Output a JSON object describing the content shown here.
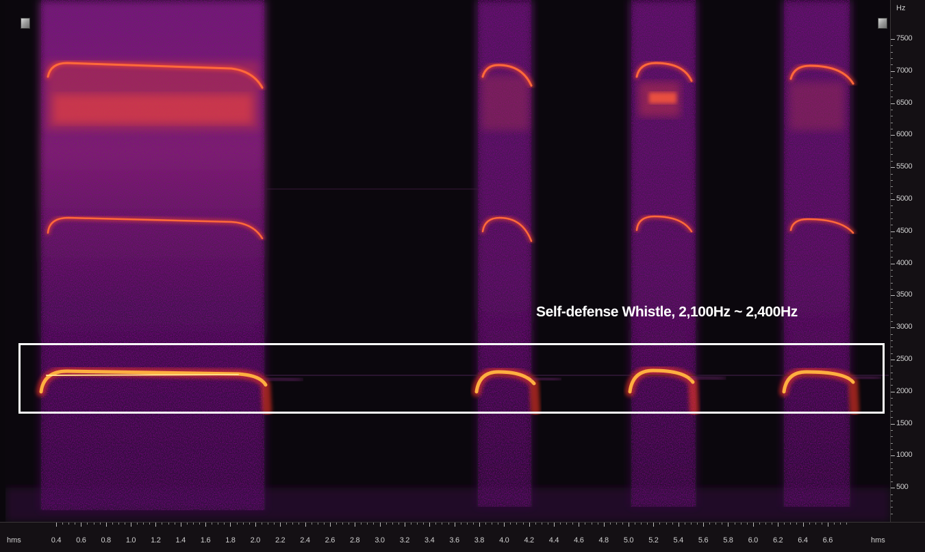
{
  "spectrogram": {
    "y_unit": "Hz",
    "y_ticks": [
      "7500",
      "7000",
      "6500",
      "6000",
      "5500",
      "5000",
      "4500",
      "4000",
      "3500",
      "3000",
      "2500",
      "2000",
      "1500",
      "1000",
      "500"
    ],
    "x_ticks": [
      "0.4",
      "0.6",
      "0.8",
      "1.0",
      "1.2",
      "1.4",
      "1.6",
      "1.8",
      "2.0",
      "2.2",
      "2.4",
      "2.6",
      "2.8",
      "3.0",
      "3.2",
      "3.4",
      "3.6",
      "3.8",
      "4.0",
      "4.2",
      "4.4",
      "4.6",
      "4.8",
      "5.0",
      "5.2",
      "5.4",
      "5.6",
      "5.8",
      "6.0",
      "6.2",
      "6.4",
      "6.6"
    ],
    "x_unit_left": "hms",
    "x_unit_right": "hms"
  },
  "annotation": {
    "label": "Self-defense Whistle, 2,100Hz ~ 2,400Hz"
  },
  "colors": {
    "background": "#0b070d",
    "noise": "#6b1f6e",
    "band_bright": "#ff7a35",
    "band_core": "#ffd060"
  }
}
